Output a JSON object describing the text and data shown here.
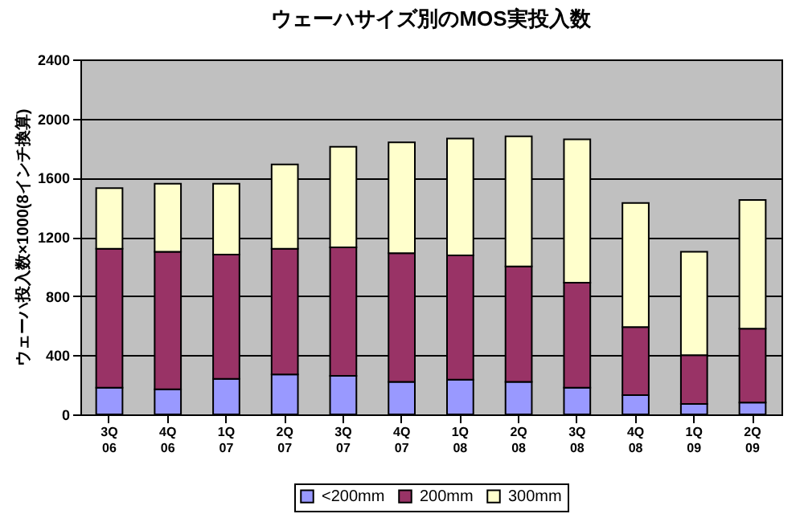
{
  "chart_data": {
    "type": "bar",
    "title": "ウェーハサイズ別のMOS実投入数",
    "ylabel": "ウェーハ投入数×1000(8インチ換算)",
    "categories": [
      "3Q\n06",
      "4Q\n06",
      "1Q\n07",
      "2Q\n07",
      "3Q\n07",
      "4Q\n07",
      "1Q\n08",
      "2Q\n08",
      "3Q\n08",
      "4Q\n08",
      "1Q\n09",
      "2Q\n09"
    ],
    "series": [
      {
        "name": "<200mm",
        "color": "#9999ff",
        "values": [
          180,
          170,
          240,
          270,
          260,
          220,
          235,
          220,
          180,
          130,
          70,
          80
        ]
      },
      {
        "name": "200mm",
        "color": "#993366",
        "values": [
          940,
          930,
          840,
          850,
          870,
          870,
          840,
          780,
          710,
          460,
          330,
          500
        ]
      },
      {
        "name": "300mm",
        "color": "#ffffcc",
        "values": [
          410,
          460,
          480,
          570,
          680,
          750,
          790,
          880,
          970,
          840,
          700,
          870
        ]
      }
    ],
    "stacked": true,
    "ylim": [
      0,
      2400
    ],
    "yticks": [
      0,
      400,
      800,
      1200,
      1600,
      2000,
      2400
    ],
    "grid": "y",
    "legend": "bottom"
  }
}
